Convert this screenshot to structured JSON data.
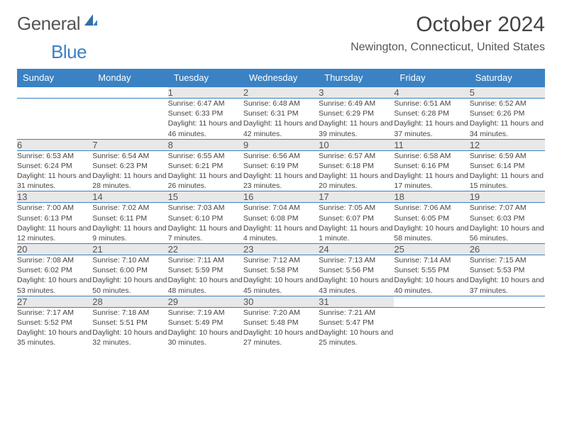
{
  "logo": {
    "part1": "General",
    "part2": "Blue"
  },
  "title": "October 2024",
  "location": "Newington, Connecticut, United States",
  "headerColor": "#3b82c4",
  "dayHeaders": [
    "Sunday",
    "Monday",
    "Tuesday",
    "Wednesday",
    "Thursday",
    "Friday",
    "Saturday"
  ],
  "weeks": [
    [
      null,
      null,
      {
        "n": "1",
        "sr": "6:47 AM",
        "ss": "6:33 PM",
        "dl": "11 hours and 46 minutes."
      },
      {
        "n": "2",
        "sr": "6:48 AM",
        "ss": "6:31 PM",
        "dl": "11 hours and 42 minutes."
      },
      {
        "n": "3",
        "sr": "6:49 AM",
        "ss": "6:29 PM",
        "dl": "11 hours and 39 minutes."
      },
      {
        "n": "4",
        "sr": "6:51 AM",
        "ss": "6:28 PM",
        "dl": "11 hours and 37 minutes."
      },
      {
        "n": "5",
        "sr": "6:52 AM",
        "ss": "6:26 PM",
        "dl": "11 hours and 34 minutes."
      }
    ],
    [
      {
        "n": "6",
        "sr": "6:53 AM",
        "ss": "6:24 PM",
        "dl": "11 hours and 31 minutes."
      },
      {
        "n": "7",
        "sr": "6:54 AM",
        "ss": "6:23 PM",
        "dl": "11 hours and 28 minutes."
      },
      {
        "n": "8",
        "sr": "6:55 AM",
        "ss": "6:21 PM",
        "dl": "11 hours and 26 minutes."
      },
      {
        "n": "9",
        "sr": "6:56 AM",
        "ss": "6:19 PM",
        "dl": "11 hours and 23 minutes."
      },
      {
        "n": "10",
        "sr": "6:57 AM",
        "ss": "6:18 PM",
        "dl": "11 hours and 20 minutes."
      },
      {
        "n": "11",
        "sr": "6:58 AM",
        "ss": "6:16 PM",
        "dl": "11 hours and 17 minutes."
      },
      {
        "n": "12",
        "sr": "6:59 AM",
        "ss": "6:14 PM",
        "dl": "11 hours and 15 minutes."
      }
    ],
    [
      {
        "n": "13",
        "sr": "7:00 AM",
        "ss": "6:13 PM",
        "dl": "11 hours and 12 minutes."
      },
      {
        "n": "14",
        "sr": "7:02 AM",
        "ss": "6:11 PM",
        "dl": "11 hours and 9 minutes."
      },
      {
        "n": "15",
        "sr": "7:03 AM",
        "ss": "6:10 PM",
        "dl": "11 hours and 7 minutes."
      },
      {
        "n": "16",
        "sr": "7:04 AM",
        "ss": "6:08 PM",
        "dl": "11 hours and 4 minutes."
      },
      {
        "n": "17",
        "sr": "7:05 AM",
        "ss": "6:07 PM",
        "dl": "11 hours and 1 minute."
      },
      {
        "n": "18",
        "sr": "7:06 AM",
        "ss": "6:05 PM",
        "dl": "10 hours and 58 minutes."
      },
      {
        "n": "19",
        "sr": "7:07 AM",
        "ss": "6:03 PM",
        "dl": "10 hours and 56 minutes."
      }
    ],
    [
      {
        "n": "20",
        "sr": "7:08 AM",
        "ss": "6:02 PM",
        "dl": "10 hours and 53 minutes."
      },
      {
        "n": "21",
        "sr": "7:10 AM",
        "ss": "6:00 PM",
        "dl": "10 hours and 50 minutes."
      },
      {
        "n": "22",
        "sr": "7:11 AM",
        "ss": "5:59 PM",
        "dl": "10 hours and 48 minutes."
      },
      {
        "n": "23",
        "sr": "7:12 AM",
        "ss": "5:58 PM",
        "dl": "10 hours and 45 minutes."
      },
      {
        "n": "24",
        "sr": "7:13 AM",
        "ss": "5:56 PM",
        "dl": "10 hours and 43 minutes."
      },
      {
        "n": "25",
        "sr": "7:14 AM",
        "ss": "5:55 PM",
        "dl": "10 hours and 40 minutes."
      },
      {
        "n": "26",
        "sr": "7:15 AM",
        "ss": "5:53 PM",
        "dl": "10 hours and 37 minutes."
      }
    ],
    [
      {
        "n": "27",
        "sr": "7:17 AM",
        "ss": "5:52 PM",
        "dl": "10 hours and 35 minutes."
      },
      {
        "n": "28",
        "sr": "7:18 AM",
        "ss": "5:51 PM",
        "dl": "10 hours and 32 minutes."
      },
      {
        "n": "29",
        "sr": "7:19 AM",
        "ss": "5:49 PM",
        "dl": "10 hours and 30 minutes."
      },
      {
        "n": "30",
        "sr": "7:20 AM",
        "ss": "5:48 PM",
        "dl": "10 hours and 27 minutes."
      },
      {
        "n": "31",
        "sr": "7:21 AM",
        "ss": "5:47 PM",
        "dl": "10 hours and 25 minutes."
      },
      null,
      null
    ]
  ],
  "labels": {
    "sunrise": "Sunrise: ",
    "sunset": "Sunset: ",
    "daylight": "Daylight: "
  }
}
